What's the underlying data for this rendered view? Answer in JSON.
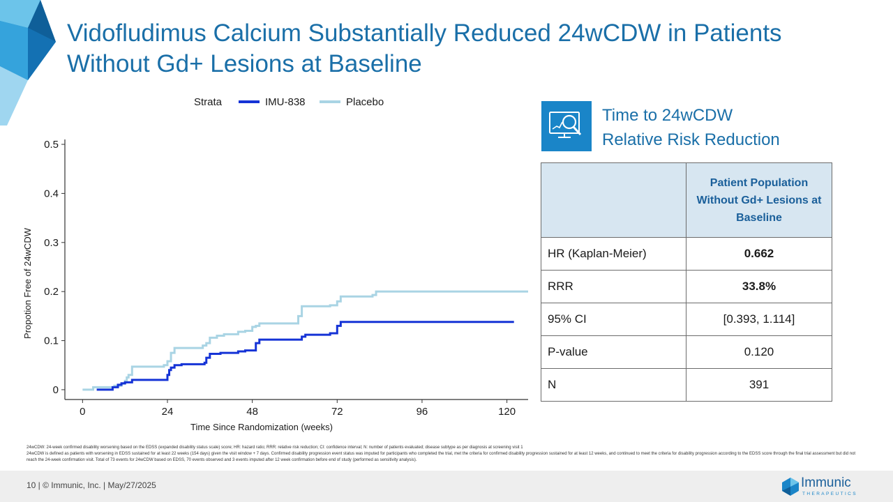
{
  "slide": {
    "title_line1": "Vidofludimus Calcium Substantially Reduced 24wCDW in Patients",
    "title_line2": "Without Gd+ Lesions at Baseline"
  },
  "colors": {
    "title": "#1a6fa8",
    "imu838": "#1533d6",
    "placebo": "#a9d4e4",
    "table_header_bg": "#d7e6f1",
    "accent": "#1a85c8"
  },
  "chart_data": {
    "type": "line",
    "step": true,
    "title": "",
    "xlabel": "Time Since Randomization (weeks)",
    "ylabel": "Propotion Free of 24wCDW",
    "xlim": [
      -5,
      126
    ],
    "ylim": [
      -0.02,
      0.51
    ],
    "x_ticks": [
      0,
      24,
      48,
      72,
      96,
      120
    ],
    "y_ticks": [
      0,
      0.1,
      0.2,
      0.3,
      0.4,
      0.5
    ],
    "y_tick_labels": [
      "0",
      "0.1",
      "0.2",
      "0.3",
      "0.4",
      "0.5"
    ],
    "legend": {
      "title": "Strata",
      "position": "top"
    },
    "series": [
      {
        "name": "IMU-838",
        "color": "#1533d6",
        "x": [
          4,
          8.5,
          10,
          11,
          12,
          14,
          23.5,
          24,
          24.5,
          25,
          26,
          28,
          34.5,
          35,
          36,
          39,
          44,
          46,
          48,
          49,
          50,
          60,
          62,
          63,
          70,
          72,
          73,
          122
        ],
        "y": [
          0,
          0.005,
          0.01,
          0.013,
          0.015,
          0.02,
          0.02,
          0.03,
          0.04,
          0.045,
          0.05,
          0.052,
          0.055,
          0.065,
          0.073,
          0.075,
          0.078,
          0.08,
          0.08,
          0.095,
          0.102,
          0.102,
          0.108,
          0.112,
          0.115,
          0.13,
          0.138,
          0.138
        ]
      },
      {
        "name": "Placebo",
        "color": "#a9d4e4",
        "x": [
          0,
          3,
          9,
          11,
          12,
          12.5,
          13,
          14,
          23,
          24,
          25,
          26,
          33,
          34,
          35,
          36,
          38,
          40,
          44,
          46,
          48,
          49,
          50,
          58,
          61,
          62,
          70,
          72,
          73,
          75,
          82,
          83,
          126
        ],
        "y": [
          0,
          0.005,
          0.008,
          0.012,
          0.018,
          0.025,
          0.03,
          0.047,
          0.05,
          0.058,
          0.075,
          0.085,
          0.085,
          0.09,
          0.095,
          0.106,
          0.11,
          0.113,
          0.118,
          0.12,
          0.128,
          0.13,
          0.135,
          0.135,
          0.15,
          0.17,
          0.172,
          0.18,
          0.19,
          0.19,
          0.193,
          0.2,
          0.2
        ]
      }
    ]
  },
  "risk_panel": {
    "heading_line1": "Time to 24wCDW",
    "heading_line2": "Relative Risk Reduction",
    "icon": "chart-magnifier-icon",
    "column_header": "Patient Population Without Gd+ Lesions at Baseline",
    "rows": [
      {
        "label": "HR (Kaplan-Meier)",
        "value": "0.662"
      },
      {
        "label": "RRR",
        "value": "33.8%"
      },
      {
        "label": "95% CI",
        "value": "[0.393, 1.114]"
      },
      {
        "label": "P-value",
        "value": "0.120"
      },
      {
        "label": "N",
        "value": "391"
      }
    ]
  },
  "footnotes": [
    "24wCDW: 24-week confirmed disability worsening based on the EDSS (expanded disability status scale) score; HR: hazard ratio; RRR: relative risk reduction; CI: confidence interval; N: number of patients evaluated; disease subtype as per diagnosis at screening visit 1",
    "24wCDW is defined as patients with worsening in EDSS sustained for at least 22 weeks (154 days) given the visit window + 7 days. Confirmed disability progression event status was imputed for participants who completed the trial, met the criteria for confirmed disability progression sustained for at least 12 weeks, and continued to meet the criteria for disability progression according to the EDSS score through the final trial assessment but did not reach the 24-week confirmation visit. Total of 73 events for 24wCDW based on EDSS, 70 events observed and 3 events imputed after 12 week confirmation before end of study (performed as sensitivity analysis)."
  ],
  "footer": {
    "text": "10   |  © Immunic, Inc.  | May/27/2025",
    "logo_name": "Immunic",
    "logo_sub": "THERAPEUTICS"
  }
}
